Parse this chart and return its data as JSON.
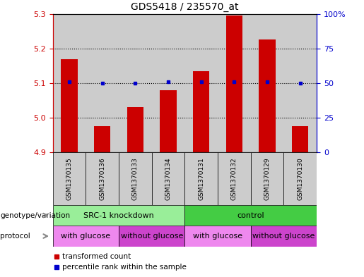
{
  "title": "GDS5418 / 235570_at",
  "samples": [
    "GSM1370135",
    "GSM1370136",
    "GSM1370133",
    "GSM1370134",
    "GSM1370131",
    "GSM1370132",
    "GSM1370129",
    "GSM1370130"
  ],
  "bar_values": [
    5.17,
    4.975,
    5.03,
    5.08,
    5.135,
    5.295,
    5.225,
    4.975
  ],
  "percentile_values": [
    51,
    50,
    50,
    51,
    51,
    51,
    51,
    50
  ],
  "ylim_left": [
    4.9,
    5.3
  ],
  "ylim_right": [
    0,
    100
  ],
  "yticks_left": [
    4.9,
    5.0,
    5.1,
    5.2,
    5.3
  ],
  "yticks_right": [
    0,
    25,
    50,
    75,
    100
  ],
  "bar_color": "#cc0000",
  "dot_color": "#0000cc",
  "bar_width": 0.5,
  "genotype_groups": [
    {
      "label": "SRC-1 knockdown",
      "start": 0,
      "end": 4,
      "color": "#99ee99"
    },
    {
      "label": "control",
      "start": 4,
      "end": 8,
      "color": "#44cc44"
    }
  ],
  "protocol_groups": [
    {
      "label": "with glucose",
      "start": 0,
      "end": 2,
      "color": "#ee88ee"
    },
    {
      "label": "without glucose",
      "start": 2,
      "end": 4,
      "color": "#cc44cc"
    },
    {
      "label": "with glucose",
      "start": 4,
      "end": 6,
      "color": "#ee88ee"
    },
    {
      "label": "without glucose",
      "start": 6,
      "end": 8,
      "color": "#cc44cc"
    }
  ],
  "legend_items": [
    {
      "label": "transformed count",
      "color": "#cc0000"
    },
    {
      "label": "percentile rank within the sample",
      "color": "#0000cc"
    }
  ],
  "sample_bg_color": "#cccccc",
  "left_tick_color": "#cc0000",
  "right_tick_color": "#0000cc",
  "fig_width": 5.15,
  "fig_height": 3.93,
  "dpi": 100
}
